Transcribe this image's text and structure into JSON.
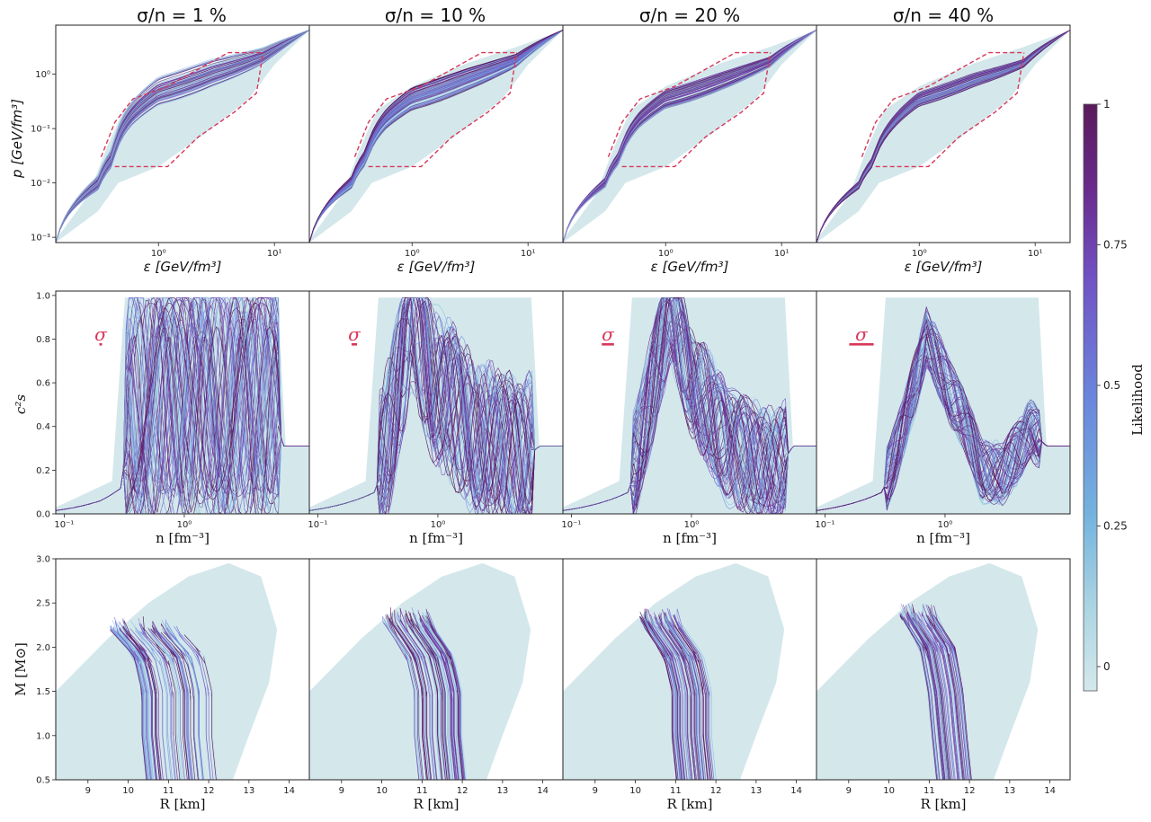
{
  "figure": {
    "column_titles": [
      "σ/n = 1 %",
      "σ/n = 10 %",
      "σ/n = 20 %",
      "σ/n = 40 %"
    ],
    "colorbar": {
      "label": "Likelihood",
      "ticks": [
        "0",
        "0.25",
        "0.5",
        "0.75",
        "1"
      ],
      "tick_values": [
        0,
        0.25,
        0.5,
        0.75,
        1
      ],
      "colors": [
        "#d4e8ec",
        "#a9d3e2",
        "#74b3de",
        "#6a86dc",
        "#7153c4",
        "#6a2b8e",
        "#5a1a5a"
      ]
    },
    "colors": {
      "prior_band": "#cfe5ea",
      "bound_dashed": "#d8375a",
      "sigma_marker": "#d8375a"
    }
  },
  "chart_data": [
    {
      "type": "line",
      "row": "pressure-vs-energy-density",
      "xlabel": "ε [GeV/fm³]",
      "ylabel": "p [GeV/fm³]",
      "xscale": "log",
      "yscale": "log",
      "xlim": [
        0.13,
        20
      ],
      "ylim": [
        0.0008,
        8
      ],
      "x_ticks": [
        "10⁰",
        "10¹"
      ],
      "x_tick_values": [
        1,
        10
      ],
      "y_ticks": [
        "10⁻³",
        "10⁻²",
        "10⁻¹",
        "10⁰"
      ],
      "y_tick_values": [
        0.001,
        0.01,
        0.1,
        1
      ],
      "bounds": {
        "upper": [
          [
            0.32,
            0.03
          ],
          [
            0.42,
            0.13
          ],
          [
            0.6,
            0.35
          ],
          [
            1.2,
            0.6
          ],
          [
            4,
            2.5
          ],
          [
            8,
            2.5
          ]
        ],
        "lower": [
          [
            0.42,
            0.02
          ],
          [
            1.2,
            0.02
          ],
          [
            2.2,
            0.07
          ],
          [
            4.5,
            0.2
          ],
          [
            7,
            0.45
          ],
          [
            8,
            2.5
          ]
        ]
      },
      "prior_band": {
        "upper": [
          [
            0.13,
            0.0009
          ],
          [
            0.25,
            0.006
          ],
          [
            0.35,
            0.04
          ],
          [
            0.5,
            0.22
          ],
          [
            1,
            0.6
          ],
          [
            3,
            1.6
          ],
          [
            8,
            3.2
          ],
          [
            20,
            6.5
          ]
        ],
        "lower": [
          [
            0.13,
            0.0008
          ],
          [
            0.3,
            0.003
          ],
          [
            0.45,
            0.01
          ],
          [
            1,
            0.02
          ],
          [
            2.5,
            0.08
          ],
          [
            6,
            0.35
          ],
          [
            10,
            1.5
          ],
          [
            20,
            6.5
          ]
        ]
      },
      "panels": [
        {
          "sigma_over_n": "1 %",
          "median": [
            [
              0.13,
              0.0008
            ],
            [
              0.3,
              0.01
            ],
            [
              0.4,
              0.03
            ],
            [
              0.6,
              0.2
            ],
            [
              1,
              0.5
            ],
            [
              3,
              1.1
            ],
            [
              8,
              2.2
            ],
            [
              20,
              6.5
            ]
          ],
          "spread": 0.28
        },
        {
          "sigma_over_n": "10 %",
          "median": [
            [
              0.13,
              0.0008
            ],
            [
              0.3,
              0.01
            ],
            [
              0.4,
              0.03
            ],
            [
              0.6,
              0.15
            ],
            [
              1,
              0.35
            ],
            [
              3,
              0.8
            ],
            [
              8,
              1.8
            ],
            [
              20,
              6.5
            ]
          ],
          "spread": 0.22
        },
        {
          "sigma_over_n": "20 %",
          "median": [
            [
              0.13,
              0.0008
            ],
            [
              0.3,
              0.01
            ],
            [
              0.4,
              0.03
            ],
            [
              0.6,
              0.15
            ],
            [
              1,
              0.35
            ],
            [
              3,
              0.75
            ],
            [
              8,
              1.7
            ],
            [
              20,
              6.5
            ]
          ],
          "spread": 0.18
        },
        {
          "sigma_over_n": "40 %",
          "median": [
            [
              0.13,
              0.0008
            ],
            [
              0.3,
              0.009
            ],
            [
              0.4,
              0.025
            ],
            [
              0.6,
              0.13
            ],
            [
              1,
              0.35
            ],
            [
              3,
              0.8
            ],
            [
              8,
              1.6
            ],
            [
              20,
              6.5
            ]
          ],
          "spread": 0.14
        }
      ]
    },
    {
      "type": "line",
      "row": "speed-of-sound-vs-density",
      "xlabel": "n [fm⁻³]",
      "ylabel": "c²s",
      "xscale": "log",
      "yscale": "linear",
      "xlim": [
        0.085,
        11
      ],
      "ylim": [
        0,
        1.02
      ],
      "x_ticks": [
        "10⁻¹",
        "10⁰"
      ],
      "x_tick_values": [
        0.1,
        1
      ],
      "y_ticks": [
        "0.0",
        "0.2",
        "0.4",
        "0.6",
        "0.8",
        "1.0"
      ],
      "y_tick_values": [
        0,
        0.2,
        0.4,
        0.6,
        0.8,
        1.0
      ],
      "panels": [
        {
          "sigma_over_n": "1 %",
          "sigma_label": "σ",
          "sigma_bar_width": 0.02,
          "median": [
            [
              0.085,
              0.015
            ],
            [
              0.2,
              0.06
            ],
            [
              0.3,
              0.12
            ],
            [
              0.35,
              0.5
            ],
            [
              1,
              0.5
            ],
            [
              6,
              0.5
            ],
            [
              6.5,
              0.31
            ],
            [
              11,
              0.31
            ]
          ],
          "spread": 0.45
        },
        {
          "sigma_over_n": "10 %",
          "sigma_label": "σ",
          "sigma_bar_width": 0.18,
          "median": [
            [
              0.085,
              0.015
            ],
            [
              0.3,
              0.1
            ],
            [
              0.45,
              0.55
            ],
            [
              0.6,
              0.95
            ],
            [
              0.9,
              0.6
            ],
            [
              2,
              0.35
            ],
            [
              5,
              0.25
            ],
            [
              7,
              0.31
            ],
            [
              11,
              0.31
            ]
          ],
          "spread": 0.3
        },
        {
          "sigma_over_n": "20 %",
          "sigma_label": "σ",
          "sigma_bar_width": 0.4,
          "median": [
            [
              0.085,
              0.015
            ],
            [
              0.3,
              0.1
            ],
            [
              0.45,
              0.55
            ],
            [
              0.65,
              0.95
            ],
            [
              1,
              0.6
            ],
            [
              2,
              0.3
            ],
            [
              5,
              0.2
            ],
            [
              7,
              0.31
            ],
            [
              11,
              0.31
            ]
          ],
          "spread": 0.22
        },
        {
          "sigma_over_n": "40 %",
          "sigma_label": "σ",
          "sigma_bar_width": 0.8,
          "median": [
            [
              0.085,
              0.015
            ],
            [
              0.3,
              0.1
            ],
            [
              0.5,
              0.5
            ],
            [
              0.7,
              0.8
            ],
            [
              1.1,
              0.55
            ],
            [
              2,
              0.2
            ],
            [
              3,
              0.18
            ],
            [
              5,
              0.38
            ],
            [
              7,
              0.31
            ],
            [
              11,
              0.31
            ]
          ],
          "spread": 0.12
        }
      ]
    },
    {
      "type": "line",
      "row": "mass-radius",
      "xlabel": "R [km]",
      "ylabel": "M [M⊙]",
      "xscale": "linear",
      "yscale": "linear",
      "xlim": [
        8.2,
        14.5
      ],
      "ylim": [
        0.5,
        3.0
      ],
      "x_ticks": [
        "9",
        "10",
        "11",
        "12",
        "13",
        "14"
      ],
      "x_tick_values": [
        9,
        10,
        11,
        12,
        13,
        14
      ],
      "y_ticks": [
        "0.5",
        "1.0",
        "1.5",
        "2.0",
        "2.5",
        "3.0"
      ],
      "y_tick_values": [
        0.5,
        1.0,
        1.5,
        2.0,
        2.5,
        3.0
      ],
      "prior_band": {
        "left": [
          [
            8.2,
            1.5
          ],
          [
            9.5,
            2.1
          ],
          [
            10.5,
            2.5
          ],
          [
            11.5,
            2.8
          ],
          [
            12.5,
            2.95
          ]
        ],
        "right": [
          [
            12.5,
            2.95
          ],
          [
            13.3,
            2.8
          ],
          [
            13.7,
            2.2
          ],
          [
            13.5,
            1.6
          ],
          [
            13.0,
            1.0
          ],
          [
            12.6,
            0.5
          ]
        ]
      },
      "panels": [
        {
          "sigma_over_n": "1 %",
          "median": [
            [
              10.4,
              2.2
            ],
            [
              11.0,
              1.9
            ],
            [
              11.2,
              1.5
            ],
            [
              11.2,
              1.0
            ],
            [
              11.3,
              0.55
            ]
          ],
          "spread": 0.9
        },
        {
          "sigma_over_n": "10 %",
          "median": [
            [
              10.6,
              2.3
            ],
            [
              11.2,
              1.9
            ],
            [
              11.4,
              1.5
            ],
            [
              11.4,
              1.0
            ],
            [
              11.5,
              0.55
            ]
          ],
          "spread": 0.6
        },
        {
          "sigma_over_n": "20 %",
          "median": [
            [
              10.6,
              2.3
            ],
            [
              11.2,
              1.9
            ],
            [
              11.4,
              1.5
            ],
            [
              11.4,
              1.0
            ],
            [
              11.5,
              0.55
            ]
          ],
          "spread": 0.5
        },
        {
          "sigma_over_n": "40 %",
          "median": [
            [
              10.7,
              2.35
            ],
            [
              11.2,
              2.0
            ],
            [
              11.4,
              1.5
            ],
            [
              11.5,
              1.0
            ],
            [
              11.6,
              0.55
            ]
          ],
          "spread": 0.45
        }
      ]
    }
  ]
}
